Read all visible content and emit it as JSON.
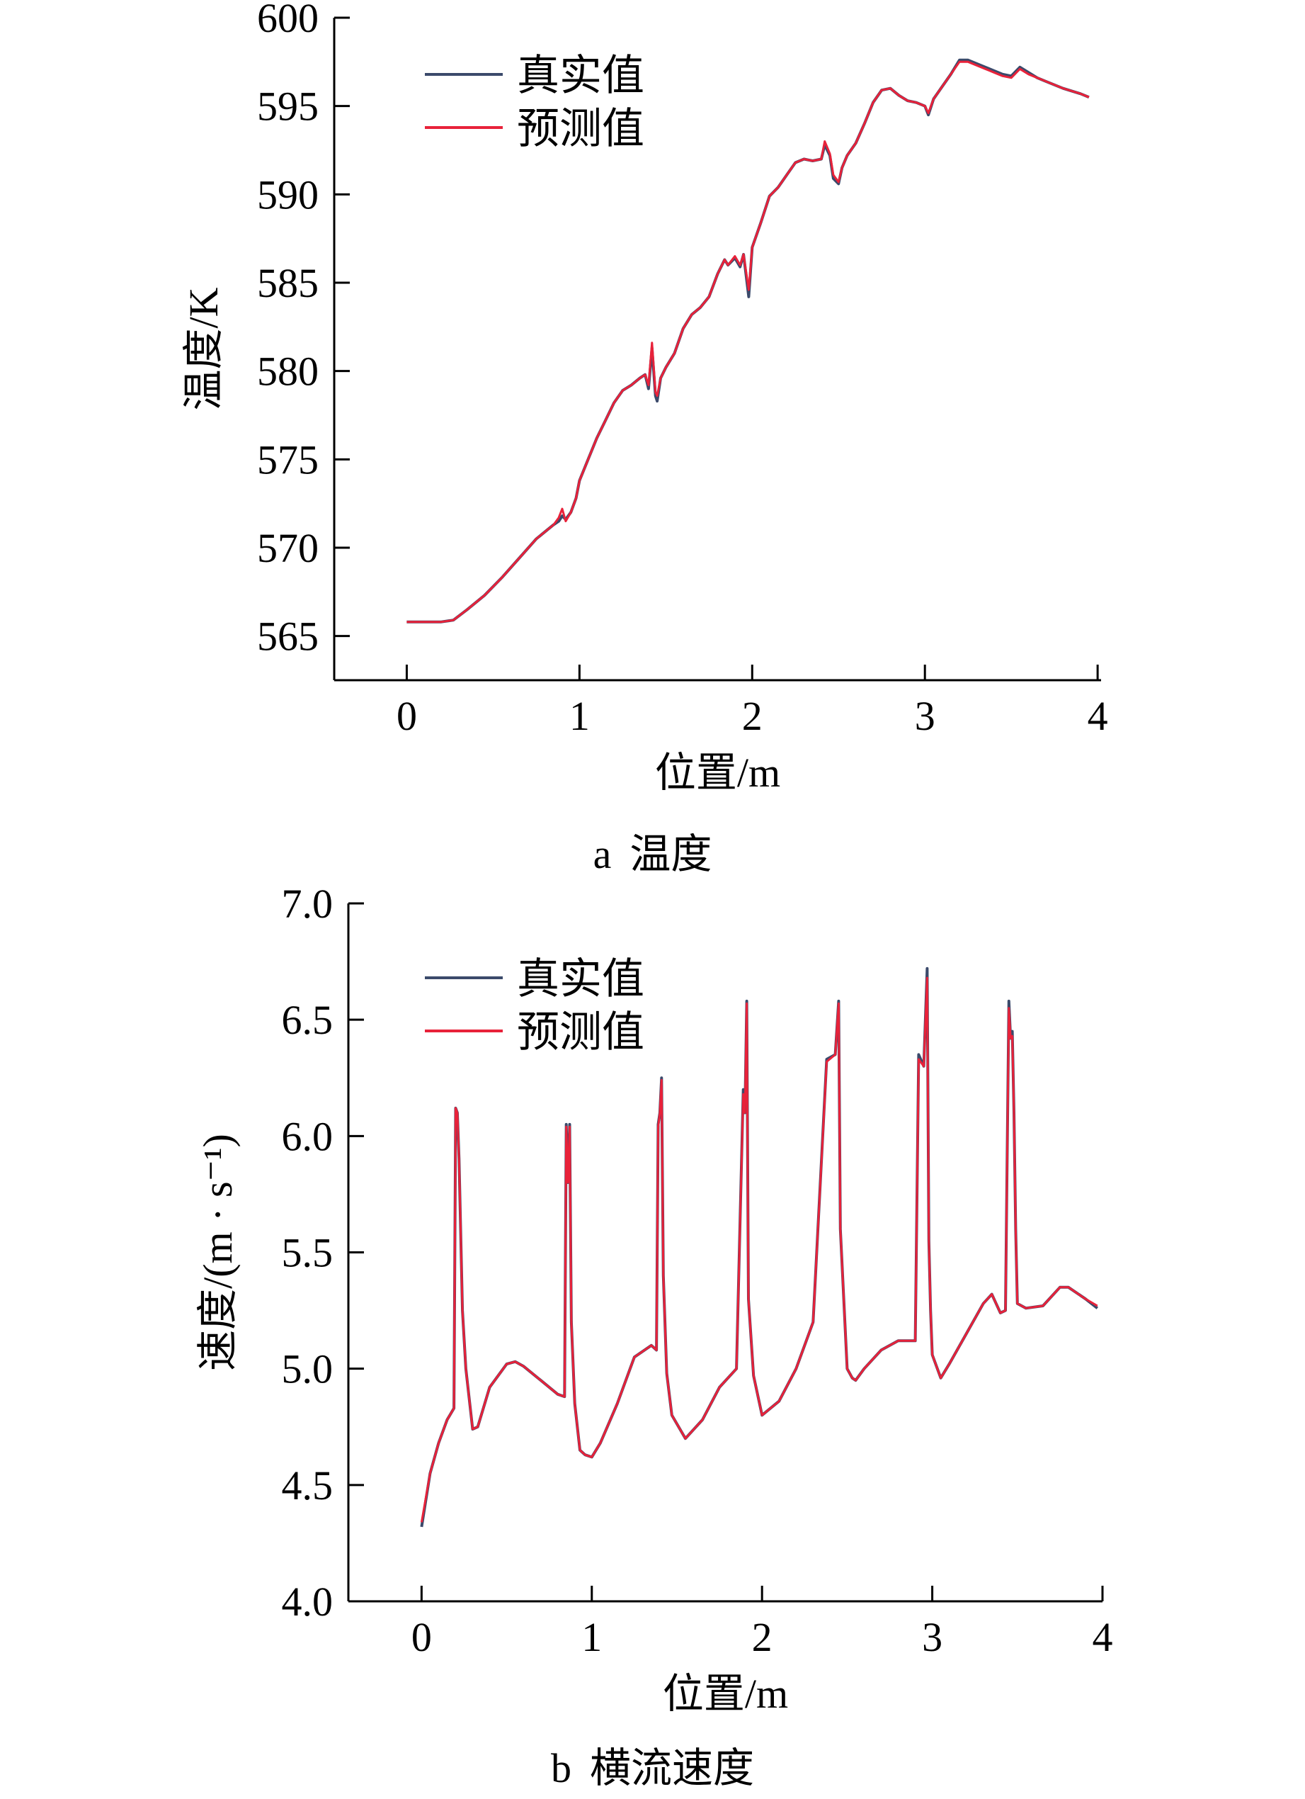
{
  "colors": {
    "true_line": "#3b4a6b",
    "pred_line": "#e8223a",
    "axis": "#000000"
  },
  "chart_data": [
    {
      "type": "line",
      "caption_letter": "a",
      "caption_text": "温度",
      "xlabel": "位置/m",
      "ylabel": "温度/K",
      "xlim": [
        -0.42,
        4.02
      ],
      "ylim": [
        562.5,
        600
      ],
      "xticks": [
        0,
        1,
        2,
        3,
        4
      ],
      "yticks": [
        565,
        570,
        575,
        580,
        585,
        590,
        595,
        600
      ],
      "ytick_labels": [
        "565",
        "570",
        "575",
        "580",
        "585",
        "590",
        "595",
        "600"
      ],
      "legend_position": "top-left",
      "grid": false,
      "series": [
        {
          "name": "真实值",
          "x": [
            0,
            0.1,
            0.2,
            0.27,
            0.35,
            0.45,
            0.55,
            0.65,
            0.75,
            0.85,
            0.88,
            0.9,
            0.92,
            0.95,
            0.98,
            1.0,
            1.05,
            1.1,
            1.15,
            1.2,
            1.25,
            1.3,
            1.35,
            1.38,
            1.4,
            1.42,
            1.44,
            1.45,
            1.47,
            1.5,
            1.55,
            1.6,
            1.65,
            1.7,
            1.75,
            1.8,
            1.84,
            1.86,
            1.9,
            1.93,
            1.95,
            1.98,
            2.0,
            2.05,
            2.1,
            2.15,
            2.2,
            2.25,
            2.3,
            2.35,
            2.4,
            2.42,
            2.45,
            2.47,
            2.5,
            2.52,
            2.55,
            2.6,
            2.65,
            2.7,
            2.75,
            2.8,
            2.85,
            2.9,
            2.95,
            3.0,
            3.02,
            3.05,
            3.1,
            3.15,
            3.2,
            3.25,
            3.3,
            3.35,
            3.4,
            3.45,
            3.5,
            3.55,
            3.6,
            3.65,
            3.7,
            3.8,
            3.9,
            3.95
          ],
          "y": [
            565.8,
            565.8,
            565.8,
            565.9,
            566.5,
            567.3,
            568.3,
            569.4,
            570.5,
            571.3,
            571.5,
            571.8,
            571.6,
            572.0,
            572.8,
            573.8,
            575.0,
            576.2,
            577.2,
            578.2,
            578.9,
            579.2,
            579.6,
            579.8,
            579.0,
            581.3,
            578.6,
            578.3,
            579.6,
            580.2,
            581.0,
            582.4,
            583.2,
            583.6,
            584.2,
            585.5,
            586.3,
            586.0,
            586.4,
            585.9,
            586.6,
            584.2,
            587.0,
            588.4,
            589.9,
            590.4,
            591.1,
            591.8,
            592.0,
            591.9,
            592.0,
            592.8,
            592.2,
            590.9,
            590.6,
            591.5,
            592.2,
            592.9,
            594.0,
            595.2,
            595.9,
            596.0,
            595.6,
            595.3,
            595.2,
            595.0,
            594.5,
            595.4,
            596.1,
            596.8,
            597.6,
            597.6,
            597.4,
            597.2,
            597.0,
            596.8,
            596.7,
            597.2,
            596.9,
            596.6,
            596.4,
            596.0,
            595.7,
            595.5
          ]
        },
        {
          "name": "预测值",
          "x": [
            0,
            0.1,
            0.2,
            0.27,
            0.35,
            0.45,
            0.55,
            0.65,
            0.75,
            0.85,
            0.88,
            0.9,
            0.92,
            0.95,
            0.98,
            1.0,
            1.05,
            1.1,
            1.15,
            1.2,
            1.25,
            1.3,
            1.35,
            1.38,
            1.4,
            1.42,
            1.44,
            1.45,
            1.47,
            1.5,
            1.55,
            1.6,
            1.65,
            1.7,
            1.75,
            1.8,
            1.84,
            1.86,
            1.9,
            1.93,
            1.95,
            1.98,
            2.0,
            2.05,
            2.1,
            2.15,
            2.2,
            2.25,
            2.3,
            2.35,
            2.4,
            2.42,
            2.45,
            2.47,
            2.5,
            2.52,
            2.55,
            2.6,
            2.65,
            2.7,
            2.75,
            2.8,
            2.85,
            2.9,
            2.95,
            3.0,
            3.02,
            3.05,
            3.1,
            3.15,
            3.2,
            3.25,
            3.3,
            3.35,
            3.4,
            3.45,
            3.5,
            3.55,
            3.6,
            3.65,
            3.7,
            3.8,
            3.9,
            3.95
          ],
          "y": [
            565.8,
            565.8,
            565.8,
            565.9,
            566.5,
            567.3,
            568.3,
            569.4,
            570.5,
            571.3,
            571.7,
            572.2,
            571.5,
            572.0,
            572.8,
            573.8,
            575.0,
            576.2,
            577.2,
            578.2,
            578.9,
            579.2,
            579.6,
            579.8,
            579.2,
            581.6,
            578.8,
            578.6,
            579.6,
            580.2,
            581.0,
            582.4,
            583.2,
            583.6,
            584.2,
            585.5,
            586.3,
            586.0,
            586.5,
            586.0,
            586.6,
            584.6,
            587.0,
            588.4,
            589.9,
            590.4,
            591.1,
            591.8,
            592.0,
            591.9,
            592.0,
            593.0,
            592.3,
            591.1,
            590.7,
            591.5,
            592.2,
            592.9,
            594.0,
            595.2,
            595.9,
            596.0,
            595.6,
            595.3,
            595.2,
            595.0,
            594.6,
            595.4,
            596.1,
            596.8,
            597.5,
            597.5,
            597.3,
            597.1,
            596.9,
            596.7,
            596.6,
            597.1,
            596.8,
            596.6,
            596.4,
            596.0,
            595.7,
            595.5
          ]
        }
      ]
    },
    {
      "type": "line",
      "caption_letter": "b",
      "caption_text": "横流速度",
      "xlabel": "位置/m",
      "ylabel": "速度/(m · s⁻¹)",
      "xlim": [
        -0.43,
        4.0
      ],
      "ylim": [
        4.0,
        7.0
      ],
      "xticks": [
        0,
        1,
        2,
        3,
        4
      ],
      "yticks": [
        4.0,
        4.5,
        5.0,
        5.5,
        6.0,
        6.5,
        7.0
      ],
      "ytick_labels": [
        "4.0",
        "4.5",
        "5.0",
        "5.5",
        "6.0",
        "6.5",
        "7.0"
      ],
      "legend_position": "top-left",
      "grid": false,
      "series": [
        {
          "name": "真实值",
          "x": [
            0,
            0.05,
            0.1,
            0.15,
            0.19,
            0.2,
            0.21,
            0.22,
            0.24,
            0.26,
            0.3,
            0.33,
            0.4,
            0.5,
            0.55,
            0.6,
            0.7,
            0.8,
            0.84,
            0.85,
            0.86,
            0.87,
            0.88,
            0.9,
            0.93,
            0.96,
            1.0,
            1.05,
            1.15,
            1.25,
            1.35,
            1.38,
            1.39,
            1.4,
            1.41,
            1.42,
            1.44,
            1.47,
            1.55,
            1.65,
            1.75,
            1.85,
            1.89,
            1.9,
            1.91,
            1.92,
            1.95,
            2.0,
            2.1,
            2.2,
            2.3,
            2.38,
            2.43,
            2.45,
            2.46,
            2.48,
            2.5,
            2.53,
            2.55,
            2.6,
            2.7,
            2.8,
            2.9,
            2.92,
            2.95,
            2.97,
            2.98,
            2.99,
            3.0,
            3.03,
            3.05,
            3.1,
            3.2,
            3.3,
            3.35,
            3.4,
            3.43,
            3.45,
            3.46,
            3.47,
            3.48,
            3.49,
            3.5,
            3.55,
            3.65,
            3.75,
            3.8,
            3.9,
            3.97
          ],
          "y": [
            4.32,
            4.55,
            4.68,
            4.78,
            4.83,
            6.12,
            6.1,
            5.9,
            5.25,
            5.0,
            4.74,
            4.75,
            4.92,
            5.02,
            5.03,
            5.01,
            4.95,
            4.89,
            4.88,
            6.05,
            5.8,
            6.05,
            5.2,
            4.85,
            4.65,
            4.63,
            4.62,
            4.68,
            4.85,
            5.05,
            5.1,
            5.08,
            6.05,
            6.1,
            6.25,
            5.4,
            4.98,
            4.8,
            4.7,
            4.78,
            4.92,
            5.0,
            6.2,
            6.1,
            6.58,
            5.3,
            4.97,
            4.8,
            4.86,
            5.0,
            5.2,
            6.33,
            6.35,
            6.58,
            5.6,
            5.3,
            5.0,
            4.96,
            4.95,
            5.0,
            5.08,
            5.12,
            5.12,
            6.35,
            6.3,
            6.72,
            5.55,
            5.25,
            5.06,
            5.0,
            4.96,
            5.02,
            5.15,
            5.28,
            5.32,
            5.24,
            5.25,
            6.58,
            6.42,
            6.45,
            6.1,
            5.6,
            5.28,
            5.26,
            5.27,
            5.35,
            5.35,
            5.3,
            5.26
          ]
        },
        {
          "name": "预测值",
          "x": [
            0,
            0.05,
            0.1,
            0.15,
            0.19,
            0.2,
            0.21,
            0.22,
            0.24,
            0.26,
            0.3,
            0.33,
            0.4,
            0.5,
            0.55,
            0.6,
            0.7,
            0.8,
            0.84,
            0.85,
            0.86,
            0.87,
            0.88,
            0.9,
            0.93,
            0.96,
            1.0,
            1.05,
            1.15,
            1.25,
            1.35,
            1.38,
            1.39,
            1.4,
            1.41,
            1.42,
            1.44,
            1.47,
            1.55,
            1.65,
            1.75,
            1.85,
            1.89,
            1.9,
            1.91,
            1.92,
            1.95,
            2.0,
            2.1,
            2.2,
            2.3,
            2.38,
            2.43,
            2.45,
            2.46,
            2.48,
            2.5,
            2.53,
            2.55,
            2.6,
            2.7,
            2.8,
            2.9,
            2.92,
            2.95,
            2.97,
            2.98,
            2.99,
            3.0,
            3.03,
            3.05,
            3.1,
            3.2,
            3.3,
            3.35,
            3.4,
            3.43,
            3.45,
            3.46,
            3.47,
            3.48,
            3.49,
            3.5,
            3.55,
            3.65,
            3.75,
            3.8,
            3.9,
            3.97
          ],
          "y": [
            4.34,
            4.55,
            4.68,
            4.78,
            4.83,
            6.12,
            6.1,
            5.9,
            5.25,
            5.0,
            4.74,
            4.75,
            4.92,
            5.02,
            5.03,
            5.01,
            4.95,
            4.89,
            4.88,
            6.04,
            5.8,
            6.04,
            5.2,
            4.85,
            4.65,
            4.63,
            4.62,
            4.68,
            4.85,
            5.05,
            5.1,
            5.08,
            6.04,
            6.1,
            6.24,
            5.4,
            4.98,
            4.8,
            4.7,
            4.78,
            4.92,
            5.0,
            6.18,
            6.1,
            6.57,
            5.3,
            4.97,
            4.8,
            4.86,
            5.0,
            5.2,
            6.32,
            6.35,
            6.57,
            5.6,
            5.3,
            5.0,
            4.96,
            4.95,
            5.0,
            5.08,
            5.12,
            5.12,
            6.33,
            6.3,
            6.68,
            5.55,
            5.25,
            5.06,
            5.0,
            4.96,
            5.02,
            5.15,
            5.28,
            5.32,
            5.24,
            5.25,
            6.55,
            6.42,
            6.43,
            6.1,
            5.6,
            5.28,
            5.26,
            5.27,
            5.35,
            5.35,
            5.3,
            5.27
          ]
        }
      ]
    }
  ]
}
